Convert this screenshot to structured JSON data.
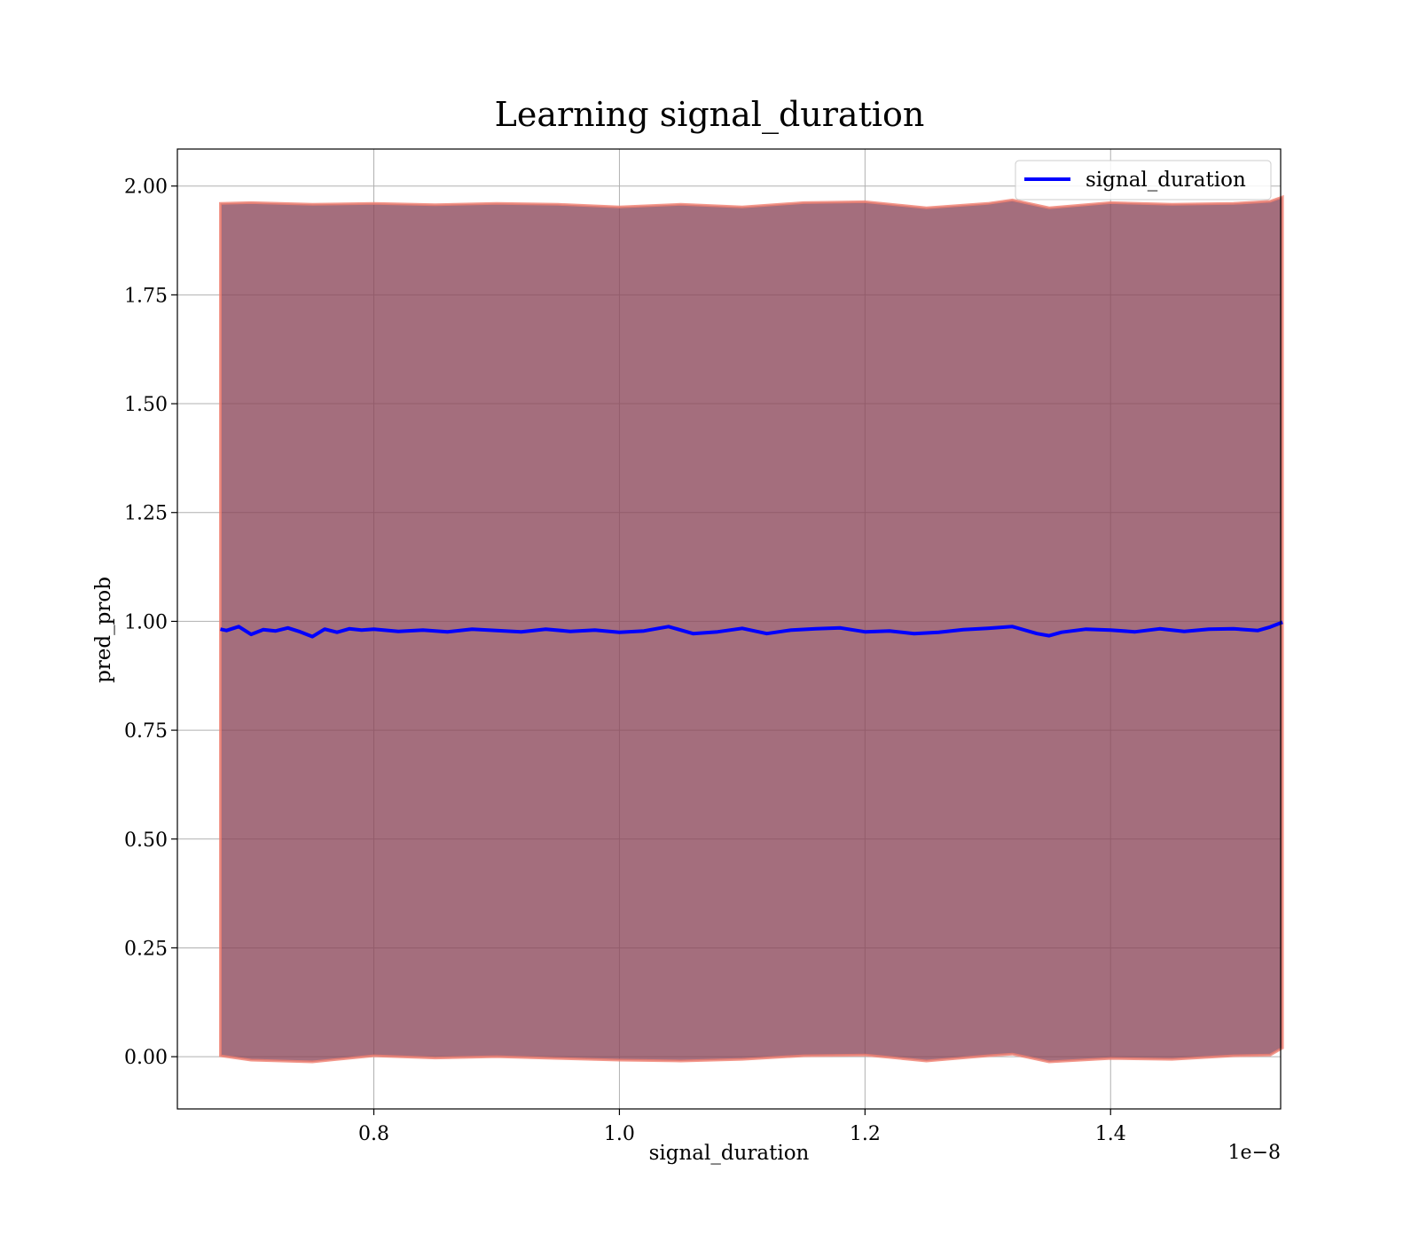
{
  "chart_data": {
    "type": "line",
    "title": "Learning signal_duration",
    "xlabel": "signal_duration",
    "ylabel": "pred_prob",
    "x_offset_label": "1e−8",
    "xlim": [
      0.64,
      1.5385
    ],
    "ylim": [
      -0.12,
      2.085
    ],
    "x_ticks": [
      0.8,
      1.0,
      1.2,
      1.4
    ],
    "x_tick_labels": [
      "0.8",
      "1.0",
      "1.2",
      "1.4"
    ],
    "y_ticks": [
      0.0,
      0.25,
      0.5,
      0.75,
      1.0,
      1.25,
      1.5,
      1.75,
      2.0
    ],
    "y_tick_labels": [
      "0.00",
      "0.25",
      "0.50",
      "0.75",
      "1.00",
      "1.25",
      "1.50",
      "1.75",
      "2.00"
    ],
    "grid": true,
    "legend_position": "top-right",
    "series": [
      {
        "name": "signal_duration",
        "color": "#0000ff",
        "x": [
          0.675,
          0.68,
          0.69,
          0.7,
          0.71,
          0.72,
          0.73,
          0.74,
          0.75,
          0.76,
          0.77,
          0.78,
          0.79,
          0.8,
          0.82,
          0.84,
          0.86,
          0.88,
          0.9,
          0.92,
          0.94,
          0.96,
          0.98,
          1.0,
          1.02,
          1.04,
          1.06,
          1.08,
          1.1,
          1.12,
          1.14,
          1.16,
          1.18,
          1.2,
          1.22,
          1.24,
          1.26,
          1.28,
          1.3,
          1.32,
          1.34,
          1.35,
          1.36,
          1.38,
          1.4,
          1.42,
          1.44,
          1.46,
          1.48,
          1.5,
          1.52,
          1.53,
          1.54
        ],
        "y": [
          0.982,
          0.979,
          0.988,
          0.97,
          0.981,
          0.978,
          0.985,
          0.976,
          0.965,
          0.982,
          0.975,
          0.983,
          0.98,
          0.982,
          0.977,
          0.98,
          0.976,
          0.982,
          0.979,
          0.976,
          0.982,
          0.977,
          0.98,
          0.975,
          0.978,
          0.988,
          0.972,
          0.976,
          0.984,
          0.972,
          0.98,
          0.983,
          0.985,
          0.976,
          0.978,
          0.972,
          0.975,
          0.981,
          0.984,
          0.988,
          0.972,
          0.967,
          0.975,
          0.982,
          0.98,
          0.976,
          0.983,
          0.977,
          0.982,
          0.983,
          0.979,
          0.987,
          0.998
        ]
      }
    ],
    "bands": [
      {
        "fill": "#8b4558",
        "edge": "#f08070",
        "x": [
          0.675,
          0.7,
          0.75,
          0.8,
          0.85,
          0.9,
          0.95,
          1.0,
          1.05,
          1.1,
          1.15,
          1.2,
          1.25,
          1.3,
          1.32,
          1.35,
          1.4,
          1.45,
          1.5,
          1.53,
          1.54
        ],
        "lower": [
          0.002,
          -0.008,
          -0.012,
          0.002,
          -0.003,
          0.0,
          -0.004,
          -0.008,
          -0.01,
          -0.006,
          0.002,
          0.004,
          -0.01,
          0.002,
          0.006,
          -0.012,
          -0.004,
          -0.006,
          0.002,
          0.004,
          0.02
        ],
        "upper": [
          1.96,
          1.962,
          1.958,
          1.96,
          1.957,
          1.96,
          1.958,
          1.952,
          1.958,
          1.952,
          1.962,
          1.964,
          1.95,
          1.96,
          1.968,
          1.95,
          1.962,
          1.958,
          1.96,
          1.965,
          1.975
        ]
      }
    ]
  }
}
